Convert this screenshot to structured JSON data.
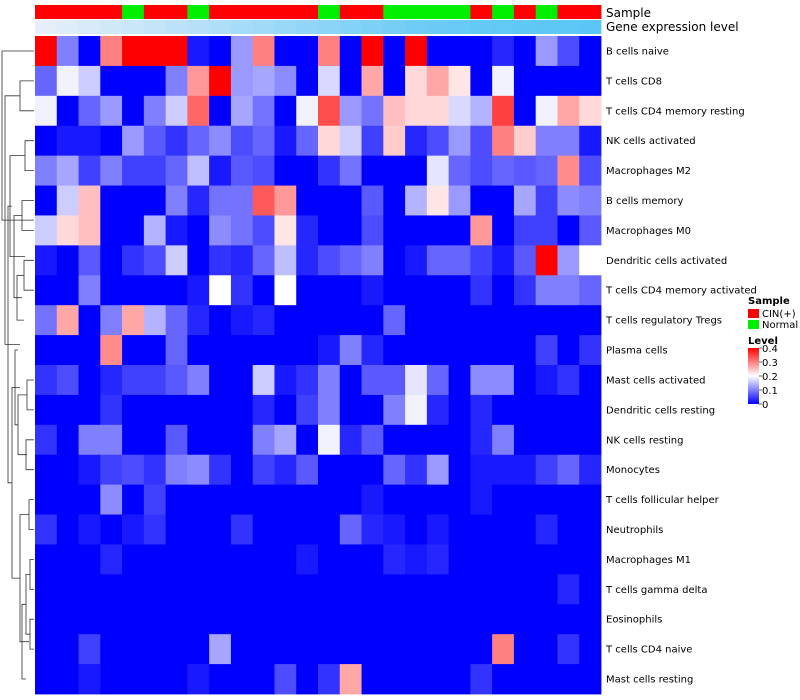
{
  "chart_data": {
    "type": "heatmap",
    "annotation_titles": {
      "sample": "Sample",
      "gene": "Gene expression level"
    },
    "rows": [
      "B cells naive",
      "T cells CD8",
      "T cells CD4 memory resting",
      "NK cells activated",
      "Macrophages M2",
      "B cells memory",
      "Macrophages M0",
      "Dendritic cells activated",
      "T cells CD4 memory activated",
      "T cells regulatory  Tregs",
      "Plasma cells",
      "Mast cells activated",
      "Dendritic cells resting",
      "NK cells resting",
      "Monocytes",
      "T cells follicular helper",
      "Neutrophils",
      "Macrophages M1",
      "T cells gamma delta",
      "Eosinophils",
      "T cells CD4 naive",
      "Mast cells resting"
    ],
    "sample_groups": [
      "CIN(+)",
      "CIN(+)",
      "CIN(+)",
      "CIN(+)",
      "Normal",
      "CIN(+)",
      "CIN(+)",
      "Normal",
      "CIN(+)",
      "CIN(+)",
      "CIN(+)",
      "CIN(+)",
      "CIN(+)",
      "Normal",
      "CIN(+)",
      "CIN(+)",
      "Normal",
      "Normal",
      "Normal",
      "Normal",
      "CIN(+)",
      "Normal",
      "CIN(+)",
      "Normal",
      "CIN(+)",
      "CIN(+)"
    ],
    "gene_level": [
      0.0,
      0.05,
      0.1,
      0.15,
      0.2,
      0.25,
      0.3,
      0.35,
      0.4,
      0.45,
      0.5,
      0.55,
      0.6,
      0.65,
      0.7,
      0.75,
      0.8,
      0.85,
      0.88,
      0.9,
      0.92,
      0.94,
      0.96,
      0.97,
      0.98,
      1.0
    ],
    "values": [
      [
        0.4,
        0.1,
        0.0,
        0.3,
        0.4,
        0.4,
        0.4,
        0.02,
        0.0,
        0.12,
        0.3,
        0.0,
        0.0,
        0.3,
        0.0,
        0.4,
        0.0,
        0.4,
        0.0,
        0.0,
        0.0,
        0.03,
        0.0,
        0.12,
        0.06,
        0.0
      ],
      [
        0.08,
        0.19,
        0.16,
        0.0,
        0.0,
        0.0,
        0.1,
        0.28,
        0.4,
        0.12,
        0.13,
        0.11,
        0.0,
        0.17,
        0.0,
        0.27,
        0.0,
        0.23,
        0.27,
        0.22,
        0.0,
        0.19,
        0.0,
        0.0,
        0.0,
        0.0
      ],
      [
        0.19,
        0.0,
        0.08,
        0.12,
        0.0,
        0.1,
        0.16,
        0.32,
        0.0,
        0.13,
        0.09,
        0.0,
        0.19,
        0.34,
        0.12,
        0.09,
        0.25,
        0.23,
        0.23,
        0.17,
        0.14,
        0.35,
        0.0,
        0.19,
        0.27,
        0.23
      ],
      [
        0.0,
        0.02,
        0.02,
        0.0,
        0.12,
        0.07,
        0.04,
        0.08,
        0.11,
        0.06,
        0.08,
        0.02,
        0.08,
        0.23,
        0.16,
        0.05,
        0.24,
        0.03,
        0.06,
        0.12,
        0.06,
        0.3,
        0.24,
        0.1,
        0.1,
        0.02
      ],
      [
        0.1,
        0.13,
        0.05,
        0.1,
        0.05,
        0.05,
        0.08,
        0.15,
        0.02,
        0.07,
        0.06,
        0.0,
        0.0,
        0.04,
        0.09,
        0.0,
        0.0,
        0.0,
        0.18,
        0.08,
        0.06,
        0.08,
        0.07,
        0.08,
        0.29,
        0.06
      ],
      [
        0.0,
        0.16,
        0.25,
        0.0,
        0.0,
        0.0,
        0.1,
        0.03,
        0.09,
        0.09,
        0.33,
        0.28,
        0.0,
        0.0,
        0.0,
        0.07,
        0.0,
        0.14,
        0.22,
        0.12,
        0.0,
        0.0,
        0.13,
        0.05,
        0.11,
        0.1
      ],
      [
        0.16,
        0.23,
        0.25,
        0.0,
        0.0,
        0.14,
        0.02,
        0.0,
        0.11,
        0.09,
        0.06,
        0.22,
        0.03,
        0.0,
        0.0,
        0.06,
        0.0,
        0.0,
        0.0,
        0.0,
        0.28,
        0.0,
        0.05,
        0.05,
        0.0,
        0.07
      ],
      [
        0.02,
        0.0,
        0.07,
        0.0,
        0.04,
        0.06,
        0.16,
        0.0,
        0.04,
        0.03,
        0.08,
        0.15,
        0.03,
        0.06,
        0.08,
        0.1,
        0.0,
        0.02,
        0.08,
        0.08,
        0.05,
        0.02,
        0.07,
        0.4,
        0.12,
        0.2
      ],
      [
        0.0,
        0.0,
        0.1,
        0.0,
        0.0,
        0.0,
        0.0,
        0.02,
        0.2,
        0.04,
        0.0,
        0.2,
        0.0,
        0.0,
        0.0,
        0.02,
        0.0,
        0.0,
        0.0,
        0.0,
        0.04,
        0.0,
        0.04,
        0.1,
        0.1,
        0.08
      ],
      [
        0.09,
        0.27,
        0.0,
        0.1,
        0.27,
        0.14,
        0.08,
        0.03,
        0.0,
        0.02,
        0.03,
        0.0,
        0.0,
        0.0,
        0.0,
        0.0,
        0.08,
        0.0,
        0.0,
        0.0,
        0.0,
        0.0,
        0.0,
        0.0,
        0.0,
        0.0
      ],
      [
        0.0,
        0.0,
        0.0,
        0.29,
        0.0,
        0.0,
        0.08,
        0.0,
        0.0,
        0.0,
        0.0,
        0.0,
        0.0,
        0.02,
        0.1,
        0.03,
        0.0,
        0.0,
        0.0,
        0.0,
        0.0,
        0.0,
        0.0,
        0.05,
        0.0,
        0.04
      ],
      [
        0.04,
        0.06,
        0.0,
        0.03,
        0.05,
        0.05,
        0.07,
        0.1,
        0.0,
        0.0,
        0.16,
        0.02,
        0.04,
        0.1,
        0.0,
        0.07,
        0.07,
        0.18,
        0.08,
        0.0,
        0.11,
        0.11,
        0.0,
        0.02,
        0.04,
        0.0
      ],
      [
        0.0,
        0.0,
        0.0,
        0.04,
        0.0,
        0.0,
        0.0,
        0.0,
        0.0,
        0.0,
        0.03,
        0.0,
        0.05,
        0.1,
        0.0,
        0.0,
        0.1,
        0.19,
        0.03,
        0.0,
        0.03,
        0.0,
        0.0,
        0.0,
        0.0,
        0.0
      ],
      [
        0.04,
        0.0,
        0.1,
        0.1,
        0.0,
        0.0,
        0.07,
        0.0,
        0.0,
        0.0,
        0.1,
        0.13,
        0.0,
        0.19,
        0.03,
        0.07,
        0.0,
        0.0,
        0.0,
        0.0,
        0.03,
        0.1,
        0.0,
        0.0,
        0.0,
        0.0
      ],
      [
        0.0,
        0.0,
        0.02,
        0.05,
        0.06,
        0.04,
        0.1,
        0.11,
        0.04,
        0.0,
        0.05,
        0.03,
        0.07,
        0.0,
        0.0,
        0.0,
        0.08,
        0.04,
        0.12,
        0.0,
        0.02,
        0.02,
        0.02,
        0.05,
        0.08,
        0.03
      ],
      [
        0.0,
        0.0,
        0.0,
        0.11,
        0.0,
        0.05,
        0.0,
        0.0,
        0.0,
        0.0,
        0.0,
        0.0,
        0.0,
        0.0,
        0.0,
        0.02,
        0.0,
        0.0,
        0.0,
        0.0,
        0.02,
        0.0,
        0.0,
        0.0,
        0.0,
        0.0
      ],
      [
        0.04,
        0.0,
        0.02,
        0.0,
        0.02,
        0.04,
        0.0,
        0.0,
        0.0,
        0.04,
        0.0,
        0.0,
        0.0,
        0.0,
        0.08,
        0.03,
        0.02,
        0.0,
        0.02,
        0.0,
        0.0,
        0.0,
        0.0,
        0.03,
        0.0,
        0.0
      ],
      [
        0.0,
        0.0,
        0.0,
        0.03,
        0.0,
        0.0,
        0.0,
        0.0,
        0.0,
        0.0,
        0.0,
        0.0,
        0.02,
        0.0,
        0.0,
        0.0,
        0.03,
        0.02,
        0.03,
        0.0,
        0.0,
        0.0,
        0.0,
        0.0,
        0.0,
        0.0
      ],
      [
        0.0,
        0.0,
        0.0,
        0.0,
        0.0,
        0.0,
        0.0,
        0.0,
        0.0,
        0.0,
        0.0,
        0.0,
        0.0,
        0.0,
        0.0,
        0.0,
        0.0,
        0.0,
        0.0,
        0.0,
        0.0,
        0.0,
        0.0,
        0.0,
        0.03,
        0.0
      ],
      [
        0.0,
        0.0,
        0.0,
        0.0,
        0.0,
        0.0,
        0.0,
        0.0,
        0.0,
        0.0,
        0.0,
        0.0,
        0.0,
        0.0,
        0.0,
        0.0,
        0.0,
        0.0,
        0.0,
        0.0,
        0.0,
        0.0,
        0.0,
        0.0,
        0.0,
        0.0
      ],
      [
        0.0,
        0.0,
        0.05,
        0.0,
        0.0,
        0.0,
        0.0,
        0.0,
        0.13,
        0.0,
        0.0,
        0.0,
        0.0,
        0.0,
        0.0,
        0.0,
        0.0,
        0.0,
        0.0,
        0.0,
        0.0,
        0.3,
        0.0,
        0.0,
        0.04,
        0.0
      ],
      [
        0.0,
        0.0,
        0.02,
        0.0,
        0.0,
        0.0,
        0.0,
        0.02,
        0.0,
        0.0,
        0.0,
        0.06,
        0.0,
        0.04,
        0.27,
        0.0,
        0.0,
        0.0,
        0.0,
        0.0,
        0.04,
        0.0,
        0.0,
        0.0,
        0.0,
        0.0
      ]
    ],
    "legend_sample": {
      "title": "Sample",
      "items": [
        {
          "label": "CIN(+)",
          "color": "#ff0000"
        },
        {
          "label": "Normal",
          "color": "#00ee00"
        }
      ]
    },
    "legend_level": {
      "title": "Level",
      "ticks": [
        "0.4",
        "0.3",
        "0.2",
        "0.1",
        "0"
      ],
      "range": [
        0,
        0.4
      ]
    },
    "colors": {
      "low": "#0000ff",
      "mid": "#ffffff",
      "high": "#ff0000",
      "cin": "#ff0000",
      "normal": "#00ee00"
    }
  }
}
